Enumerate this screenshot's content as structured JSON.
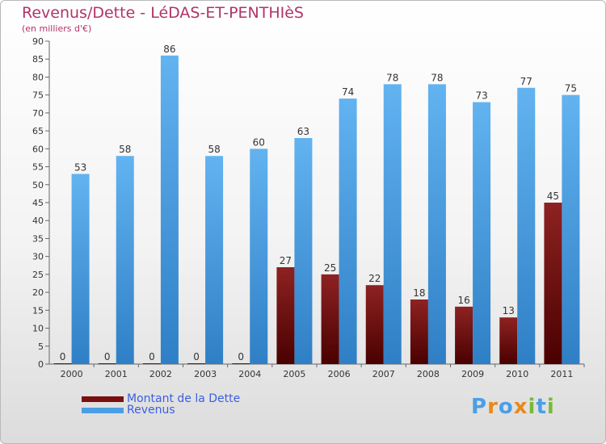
{
  "chart_data": {
    "type": "bar",
    "title": "Revenus/Dette - LéDAS-ET-PENTHIèS",
    "subtitle": "(en milliers d'€)",
    "categories": [
      "2000",
      "2001",
      "2002",
      "2003",
      "2004",
      "2005",
      "2006",
      "2007",
      "2008",
      "2009",
      "2010",
      "2011"
    ],
    "series": [
      {
        "name": "Montant de la Dette",
        "color": "#7a1010",
        "values": [
          0,
          0,
          0,
          0,
          0,
          27,
          25,
          22,
          18,
          16,
          13,
          45
        ]
      },
      {
        "name": "Revenus",
        "color": "#4a9fe6",
        "values": [
          53,
          58,
          86,
          58,
          60,
          63,
          74,
          78,
          78,
          73,
          77,
          75
        ]
      }
    ],
    "ylim": [
      0,
      90
    ],
    "yticks": [
      0,
      5,
      10,
      15,
      20,
      25,
      30,
      35,
      40,
      45,
      50,
      55,
      60,
      65,
      70,
      75,
      80,
      85,
      90
    ],
    "grid": false,
    "legend": "bottom-left"
  },
  "logo": {
    "text": "Proxiti"
  }
}
